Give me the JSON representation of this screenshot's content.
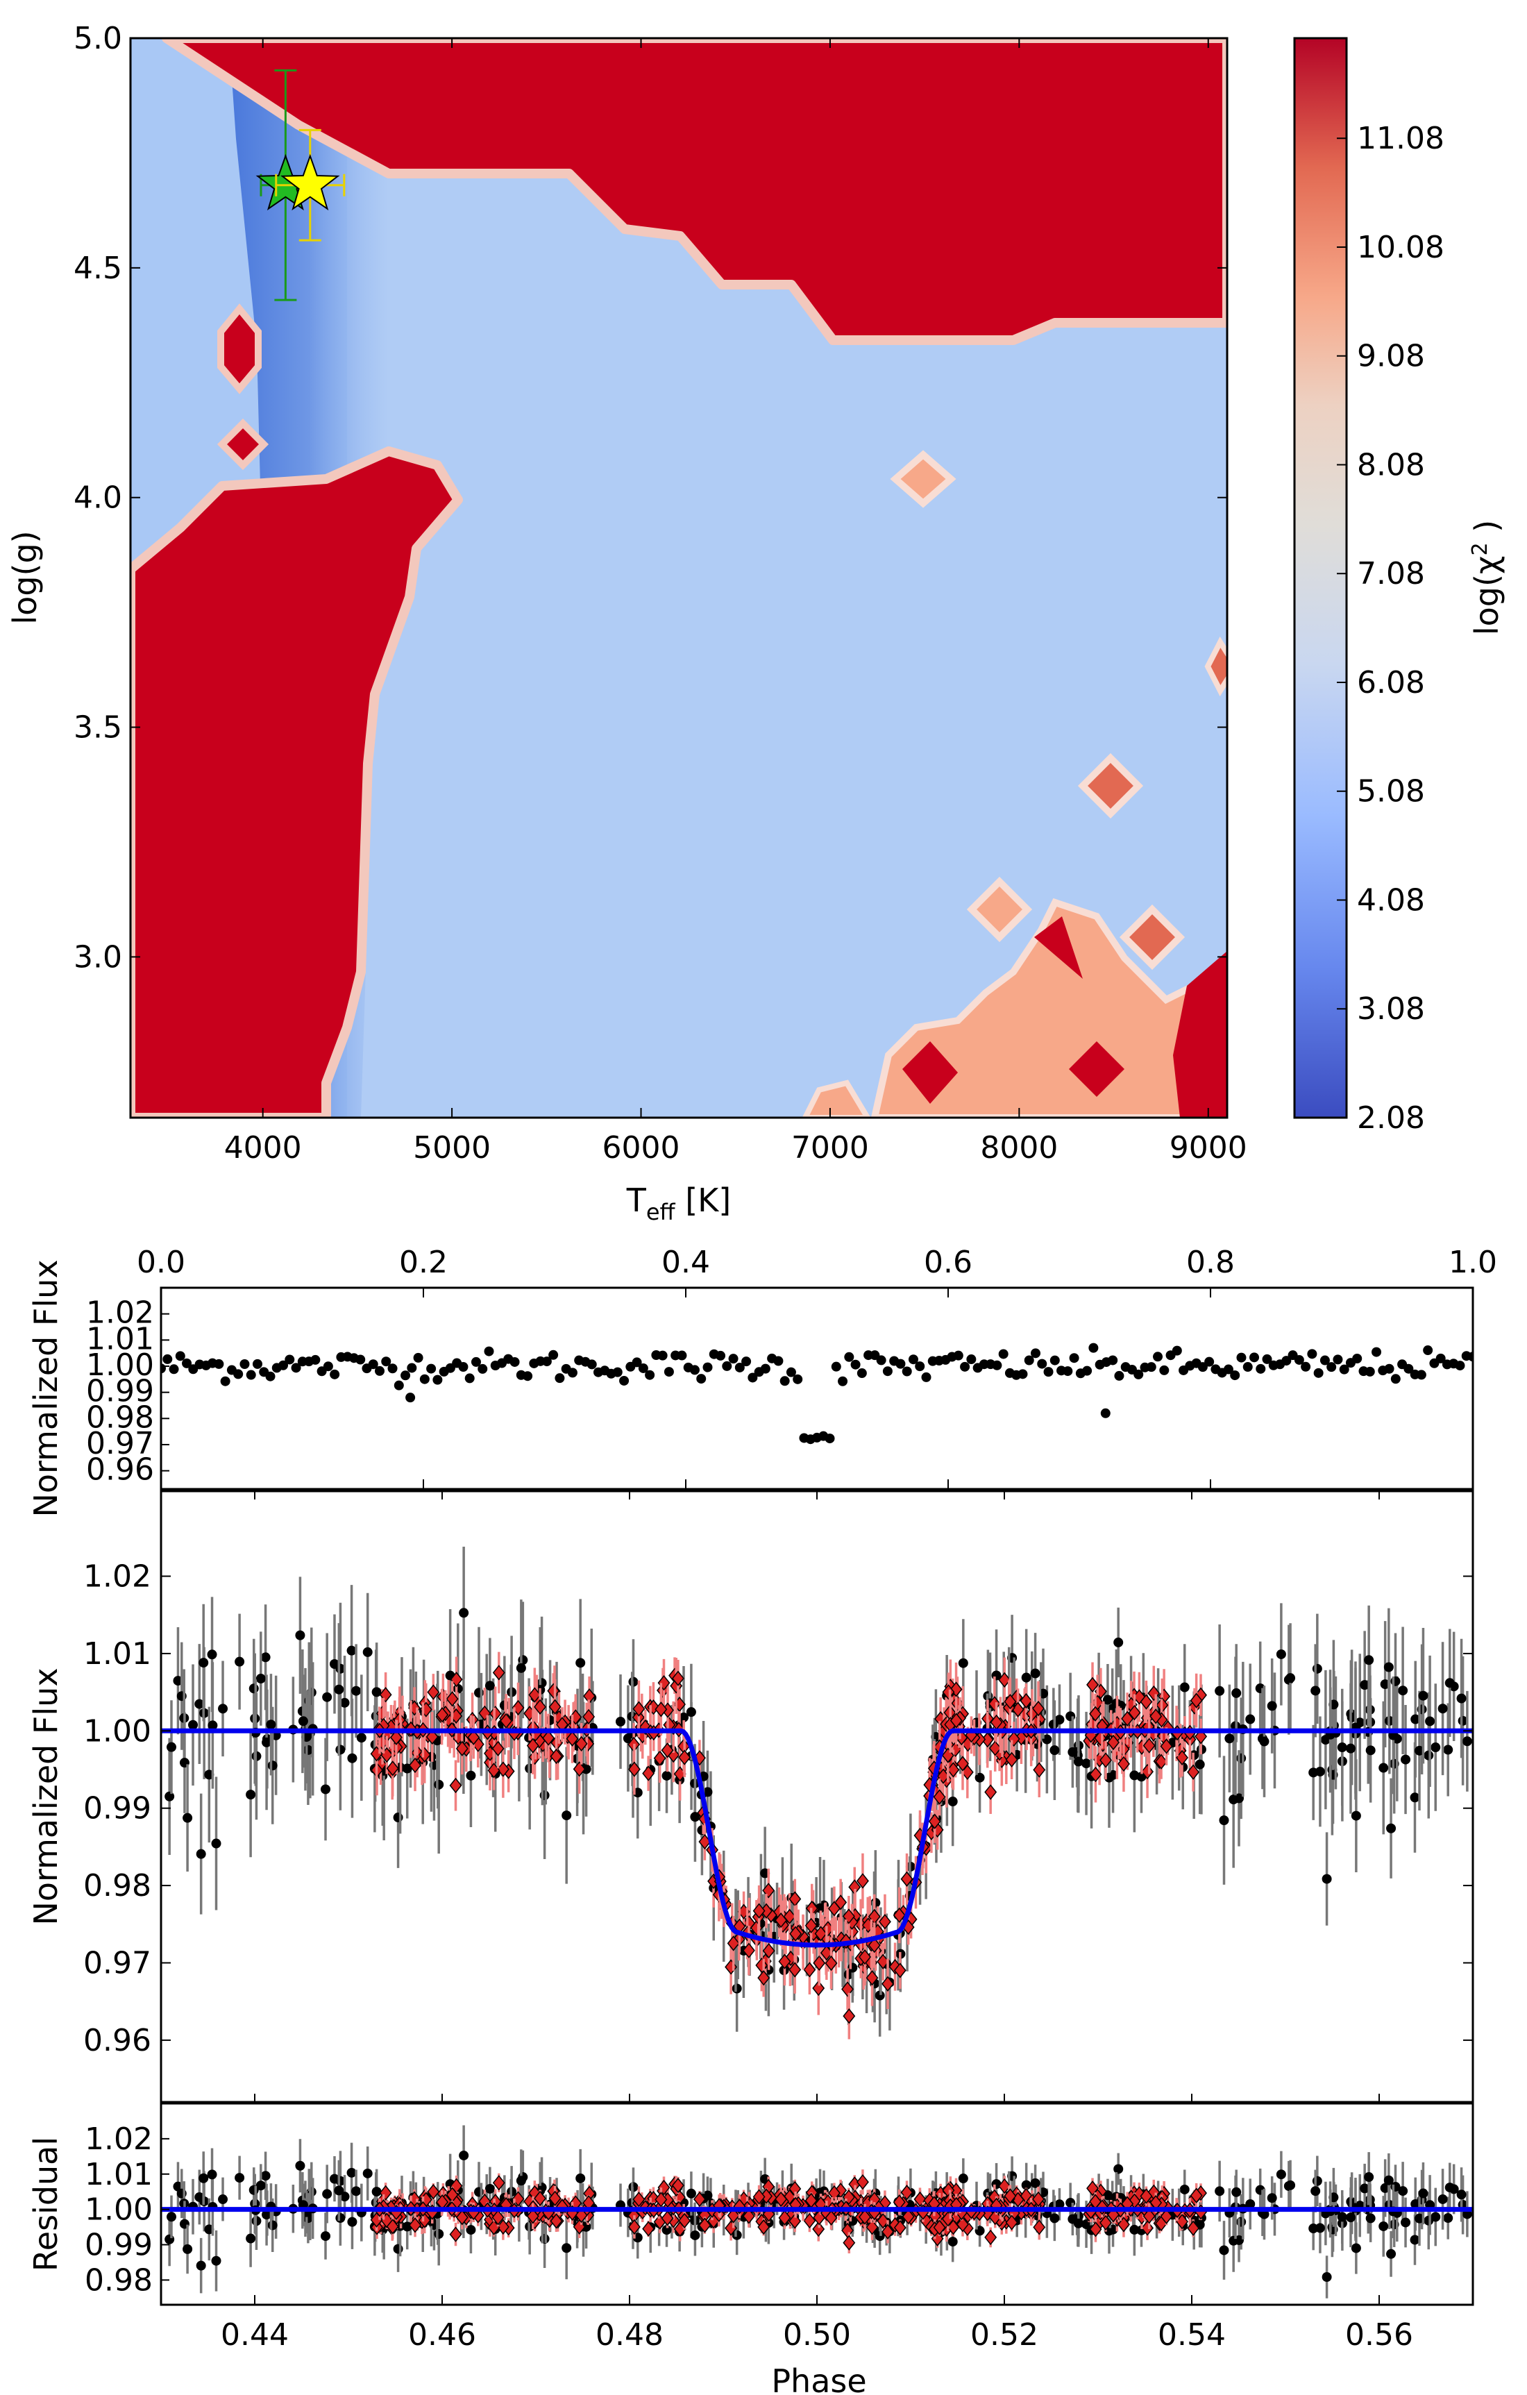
{
  "chart_data": [
    {
      "type": "heatmap",
      "panel": "top",
      "xlabel": "T",
      "xlabel_sub": "eff",
      "xlabel_unit": " [K]",
      "ylabel": "log(g)",
      "xlim": [
        3300,
        9100
      ],
      "ylim": [
        2.65,
        5.0
      ],
      "xticks": [
        4000,
        5000,
        6000,
        7000,
        8000,
        9000
      ],
      "yticks": [
        3.0,
        3.5,
        4.0,
        4.5,
        5.0
      ],
      "xtick_labels": [
        "4000",
        "5000",
        "6000",
        "7000",
        "8000",
        "9000"
      ],
      "ytick_labels": [
        "3.0",
        "3.5",
        "4.0",
        "4.5",
        "5.0"
      ],
      "colorbar": {
        "label": "log(χ",
        "label_sup": "2",
        "label_end": " )",
        "range": [
          2.08,
          12.0
        ],
        "ticks": [
          "2.08",
          "3.08",
          "4.08",
          "5.08",
          "6.08",
          "7.08",
          "8.08",
          "9.08",
          "10.08",
          "11.08"
        ],
        "colors": [
          "#3b4cc0",
          "#6788ee",
          "#9abbff",
          "#c9d7f0",
          "#edd1c2",
          "#f7a889",
          "#e26952",
          "#b40426"
        ]
      },
      "points": [
        {
          "marker": "star",
          "color": "#22bb22",
          "teff": 4120,
          "logg": 4.68,
          "xerr": [
            130,
            130
          ],
          "yerr": [
            0.25,
            0.25
          ]
        },
        {
          "marker": "star",
          "color": "#ffff00",
          "teff": 4250,
          "logg": 4.68,
          "xerr": [
            180,
            180
          ],
          "yerr": [
            0.12,
            0.12
          ]
        }
      ],
      "regions": {
        "high_chi2_color": "#c8001c",
        "low_chi2_color": "#a9c8f5",
        "minimum_valley_color": "#3f6fd8"
      }
    },
    {
      "type": "scatter",
      "panel": "full-orbit",
      "ylabel": "Normalized Flux",
      "xlim": [
        0.0,
        1.0
      ],
      "ylim": [
        0.953,
        1.03
      ],
      "xtick_labels": [
        "0.0",
        "0.2",
        "0.4",
        "0.6",
        "0.8",
        "1.0"
      ],
      "ytick_labels": [
        "0.96",
        "0.97",
        "0.98",
        "0.99",
        "1.00",
        "1.01",
        "1.02"
      ],
      "transit_dip": {
        "phase_start": 0.49,
        "phase_end": 0.51,
        "depth": 0.027
      },
      "outliers": [
        {
          "x": 0.19,
          "y": 0.988
        },
        {
          "x": 0.72,
          "y": 0.982
        }
      ]
    },
    {
      "type": "scatter",
      "panel": "transit-zoom",
      "ylabel": "Normalized Flux",
      "xlim": [
        0.43,
        0.57
      ],
      "ylim": [
        0.952,
        1.031
      ],
      "ytick_labels": [
        "0.96",
        "0.97",
        "0.98",
        "0.99",
        "1.00",
        "1.01",
        "1.02"
      ],
      "series": [
        {
          "color": "#000000",
          "marker": "circle",
          "errbar_color": "#777777"
        },
        {
          "color": "#dd2222",
          "marker": "diamond",
          "errbar_color": "#f08080"
        }
      ],
      "model": {
        "color": "#0000ee",
        "baseline": 1.0,
        "depth": 0.0277,
        "t1": 0.4855,
        "t2": 0.4915,
        "t3": 0.5085,
        "t4": 0.5145
      }
    },
    {
      "type": "scatter",
      "panel": "residual",
      "ylabel": "Residual",
      "xlabel": "Phase",
      "xlim": [
        0.43,
        0.57
      ],
      "ylim": [
        0.973,
        1.03
      ],
      "xtick_labels": [
        "0.44",
        "0.46",
        "0.48",
        "0.50",
        "0.52",
        "0.54",
        "0.56"
      ],
      "ytick_labels": [
        "0.98",
        "0.99",
        "1.00",
        "1.01",
        "1.02"
      ],
      "zero_line": 1.0
    }
  ]
}
